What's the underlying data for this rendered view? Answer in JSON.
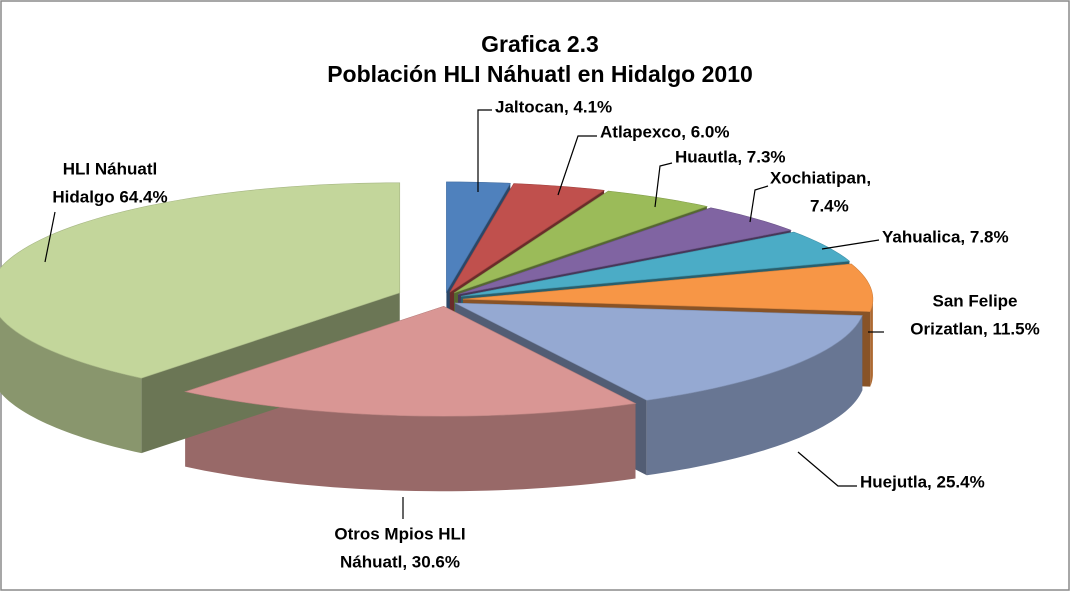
{
  "chart_data": {
    "type": "pie3d",
    "title": "Grafica 2.3",
    "subtitle": "Población HLI Náhuatl en Hidalgo 2010",
    "values": [
      4.1,
      6.0,
      7.3,
      7.4,
      7.8,
      11.5,
      25.4,
      30.6,
      64.4
    ],
    "value_labels": [
      [
        "Jaltocan, 4.1%"
      ],
      [
        "Atlapexco, 6.0%"
      ],
      [
        "Huautla, 7.3%"
      ],
      [
        "Xochiatipan,",
        "7.4%"
      ],
      [
        "Yahualica, 7.8%"
      ],
      [
        "San Felipe",
        "Orizatlan, 11.5%"
      ],
      [
        "Huejutla, 25.4%"
      ],
      [
        "Otros Mpios HLI",
        "Náhuatl, 30.6%"
      ],
      [
        "HLI Náhuatl",
        "Hidalgo 64.4%"
      ]
    ],
    "colors": [
      "#4f81bd",
      "#c0504d",
      "#9bbb59",
      "#8064a2",
      "#4bacc6",
      "#f79646",
      "#95a9d2",
      "#d99694",
      "#c3d69b"
    ]
  }
}
